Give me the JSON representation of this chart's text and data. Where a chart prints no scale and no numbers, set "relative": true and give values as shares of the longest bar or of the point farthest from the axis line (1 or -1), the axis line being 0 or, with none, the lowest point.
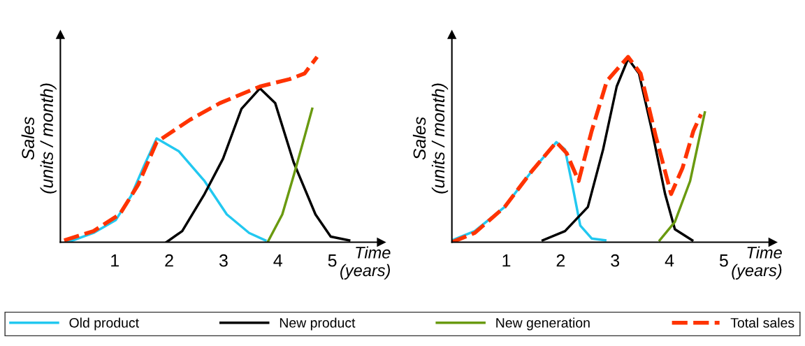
{
  "chart_data": [
    {
      "type": "line",
      "relative": true,
      "xlabel": "Time\n(years)",
      "ylabel": "Sales\n(units / month)",
      "xlim": [
        0,
        5.9
      ],
      "xticks": [
        1,
        2,
        3,
        4,
        5
      ],
      "tick_labels": "x",
      "grid": false,
      "legend": "bottom",
      "marker": "none",
      "series": [
        {
          "name": "Old product",
          "color": "#22c8f0",
          "line_style": "solid",
          "x": [
            0.14,
            0.61,
            1.02,
            1.3,
            1.55,
            1.77,
            2.18,
            2.65,
            3.06,
            3.47,
            3.77
          ],
          "values": [
            0,
            0.05,
            0.12,
            0.25,
            0.42,
            0.56,
            0.49,
            0.33,
            0.15,
            0.05,
            0.01
          ]
        },
        {
          "name": "New product",
          "color": "#000000",
          "line_style": "solid",
          "x": [
            1.95,
            2.24,
            2.65,
            2.99,
            3.33,
            3.67,
            3.95,
            4.29,
            4.69,
            4.97,
            5.31
          ],
          "values": [
            0,
            0.06,
            0.26,
            0.45,
            0.72,
            0.83,
            0.75,
            0.43,
            0.15,
            0.03,
            0.01
          ]
        },
        {
          "name": "New generation",
          "color": "#6a9a10",
          "line_style": "solid",
          "x": [
            3.81,
            4.08,
            4.29,
            4.49,
            4.63
          ],
          "values": [
            0,
            0.15,
            0.36,
            0.57,
            0.72
          ]
        },
        {
          "name": "Total sales",
          "color": "#ff3300",
          "line_style": "dashed",
          "x": [
            0.07,
            0.61,
            1.09,
            1.43,
            1.77,
            2.38,
            2.93,
            3.67,
            4.22,
            4.49,
            4.72
          ],
          "values": [
            0.01,
            0.06,
            0.15,
            0.31,
            0.54,
            0.66,
            0.75,
            0.84,
            0.88,
            0.91,
            1.0
          ]
        }
      ]
    },
    {
      "type": "line",
      "relative": true,
      "xlabel": "Time\n(years)",
      "ylabel": "Sales\n(units / month)",
      "xlim": [
        0,
        5.9
      ],
      "xticks": [
        1,
        2,
        3,
        4,
        5
      ],
      "tick_labels": "x",
      "grid": false,
      "marker": "none",
      "series": [
        {
          "color": "#22c8f0",
          "line_style": "solid",
          "x": [
            0.0,
            0.42,
            0.97,
            1.46,
            1.92,
            2.08,
            2.22,
            2.36,
            2.57,
            2.82
          ],
          "values": [
            0.01,
            0.06,
            0.19,
            0.38,
            0.54,
            0.5,
            0.3,
            0.09,
            0.02,
            0.01
          ]
        },
        {
          "color": "#000000",
          "line_style": "solid",
          "x": [
            1.67,
            2.08,
            2.5,
            2.78,
            3.03,
            3.24,
            3.44,
            3.68,
            3.92,
            4.1,
            4.42
          ],
          "values": [
            0.01,
            0.06,
            0.19,
            0.5,
            0.84,
            0.99,
            0.91,
            0.6,
            0.26,
            0.07,
            0.01
          ]
        },
        {
          "color": "#6a9a10",
          "line_style": "solid",
          "x": [
            3.82,
            4.1,
            4.38,
            4.65
          ],
          "values": [
            0.01,
            0.11,
            0.33,
            0.7
          ]
        },
        {
          "color": "#ff3300",
          "line_style": "dashed",
          "x": [
            0.0,
            0.42,
            0.97,
            1.46,
            1.92,
            2.11,
            2.33,
            2.57,
            2.85,
            3.24,
            3.47,
            3.75,
            4.03,
            4.24,
            4.44,
            4.58
          ],
          "values": [
            0,
            0.05,
            0.19,
            0.38,
            0.54,
            0.48,
            0.33,
            0.6,
            0.87,
            1.0,
            0.91,
            0.57,
            0.26,
            0.4,
            0.6,
            0.69
          ]
        }
      ]
    }
  ]
}
